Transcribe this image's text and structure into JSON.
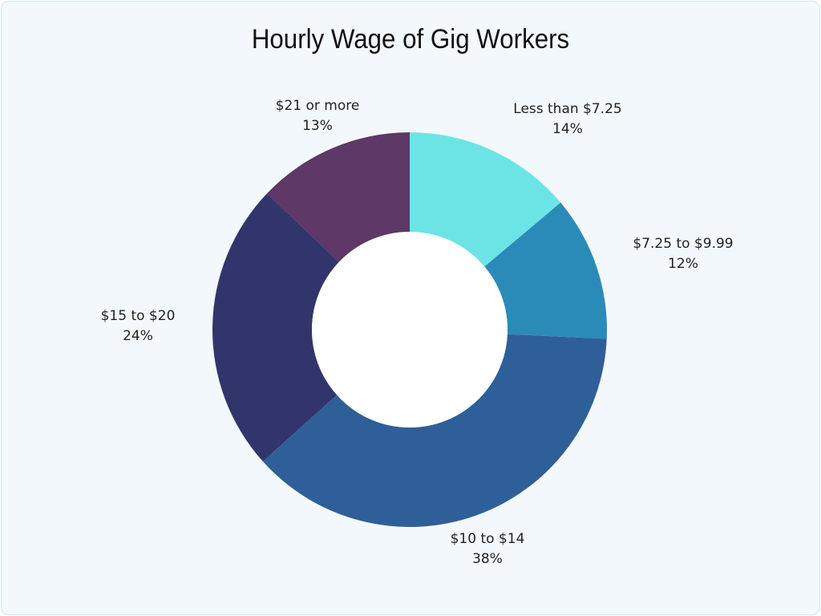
{
  "chart_data": {
    "type": "pie",
    "variant": "donut",
    "title": "Hourly Wage of Gig Workers",
    "categories": [
      "Less than $7.25",
      "$7.25 to $9.99",
      "$10 to $14",
      "$15 to $20",
      "$21 or more"
    ],
    "values": [
      14,
      12,
      38,
      24,
      13
    ],
    "unit": "%",
    "colors": [
      "#6ce4e6",
      "#2b8bb8",
      "#2f5f98",
      "#31356b",
      "#5e3866"
    ],
    "start_angle": "top, clockwise",
    "legend": "none (direct labels)"
  },
  "labels": [
    {
      "name": "Less than $7.25",
      "pct": "14%"
    },
    {
      "name": "$7.25 to $9.99",
      "pct": "12%"
    },
    {
      "name": "$10 to $14",
      "pct": "38%"
    },
    {
      "name": "$15 to $20",
      "pct": "24%"
    },
    {
      "name": "$21 or more",
      "pct": "13%"
    }
  ]
}
